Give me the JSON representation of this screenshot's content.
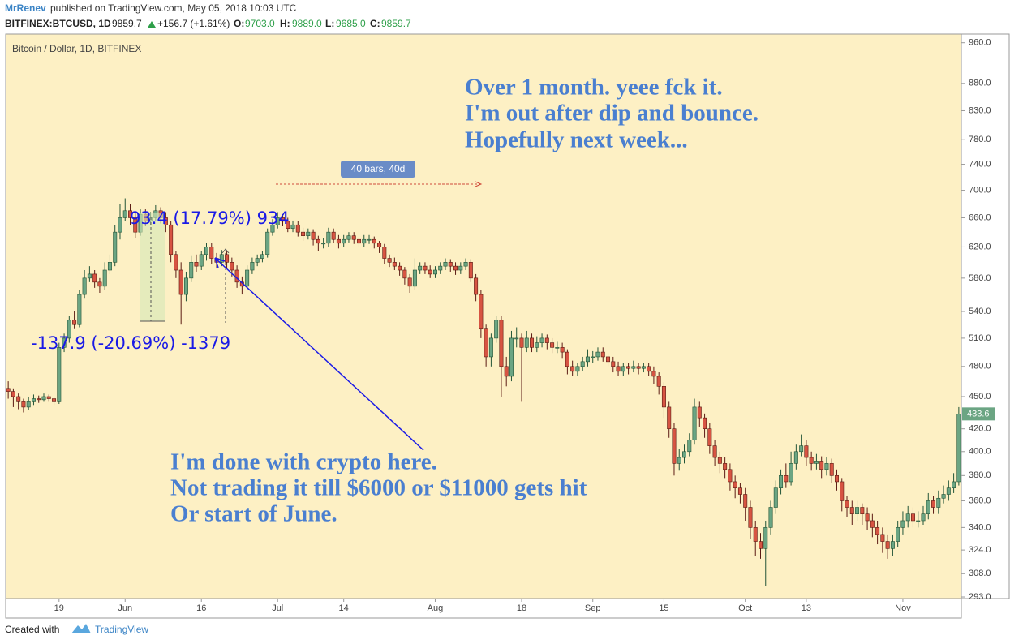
{
  "header": {
    "author": "MrRenev",
    "published": "published on TradingView.com, May 05, 2018 10:03 UTC",
    "symbol": "BITFINEX:BTCUSD, 1D",
    "last": "9859.7",
    "change": "+156.7 (+1.61%)",
    "o_label": "O:",
    "o": "9703.0",
    "h_label": "H:",
    "h": "9889.0",
    "l_label": "L:",
    "l": "9685.0",
    "c_label": "C:",
    "c": "9859.7"
  },
  "footer": {
    "created": "Created with",
    "brand": "TradingView"
  },
  "chart_data": {
    "type": "candlestick",
    "title": "Bitcoin / Dollar, 1D, BITFINEX",
    "log_scale": true,
    "up_color": "#6ba583",
    "down_color": "#d75442",
    "background": "#fdf0c4",
    "ylim": [
      292,
      978
    ],
    "yticks": [
      {
        "value": 960,
        "label": "960.0"
      },
      {
        "value": 880,
        "label": "880.0"
      },
      {
        "value": 830,
        "label": "830.0"
      },
      {
        "value": 780,
        "label": "780.0"
      },
      {
        "value": 740,
        "label": "740.0"
      },
      {
        "value": 700,
        "label": "700.0"
      },
      {
        "value": 660,
        "label": "660.0"
      },
      {
        "value": 620,
        "label": "620.0"
      },
      {
        "value": 580,
        "label": "580.0"
      },
      {
        "value": 540,
        "label": "540.0"
      },
      {
        "value": 510,
        "label": "510.0"
      },
      {
        "value": 480,
        "label": "480.0"
      },
      {
        "value": 450,
        "label": "450.0"
      },
      {
        "value": 420,
        "label": "420.0"
      },
      {
        "value": 400,
        "label": "400.0"
      },
      {
        "value": 380,
        "label": "380.0"
      },
      {
        "value": 360,
        "label": "360.0"
      },
      {
        "value": 340,
        "label": "340.0"
      },
      {
        "value": 324,
        "label": "324.0"
      },
      {
        "value": 308,
        "label": "308.0"
      },
      {
        "value": 293,
        "label": "293.0"
      }
    ],
    "xlim": [
      -0.5,
      187.5
    ],
    "xticks": [
      {
        "value": 10,
        "label": "19"
      },
      {
        "value": 23,
        "label": "Jun"
      },
      {
        "value": 38,
        "label": "16"
      },
      {
        "value": 53,
        "label": "Jul"
      },
      {
        "value": 66,
        "label": "14"
      },
      {
        "value": 84,
        "label": "Aug"
      },
      {
        "value": 101,
        "label": "18"
      },
      {
        "value": 115,
        "label": "Sep"
      },
      {
        "value": 129,
        "label": "15"
      },
      {
        "value": 145,
        "label": "Oct"
      },
      {
        "value": 157,
        "label": "13"
      },
      {
        "value": 176,
        "label": "Nov"
      }
    ],
    "annotations": {
      "top": [
        "Over 1 month. yeee fck it.",
        "I'm out after dip and bounce.",
        "Hopefully next week..."
      ],
      "bottom": [
        "I'm done with crypto here.",
        "Not trading it till $6000 or $11000 gets hit",
        "Or start of June."
      ],
      "measure_up": "93.4 (17.79%) 934",
      "measure_down": "-137.9 (-20.69%) -1379",
      "range": "40 bars, 40d"
    },
    "open": [
      458,
      455,
      450,
      445,
      440,
      445,
      448,
      447,
      450,
      448,
      445,
      500,
      510,
      530,
      525,
      560,
      580,
      585,
      575,
      570,
      590,
      600,
      640,
      660,
      670,
      660,
      640,
      665,
      655,
      660,
      670,
      660,
      650,
      610,
      590,
      560,
      580,
      600,
      595,
      610,
      620,
      605,
      600,
      610,
      600,
      590,
      575,
      570,
      590,
      600,
      605,
      610,
      640,
      650,
      660,
      655,
      645,
      650,
      640,
      635,
      640,
      630,
      625,
      625,
      640,
      630,
      625,
      630,
      635,
      630,
      625,
      630,
      630,
      625,
      620,
      605,
      600,
      595,
      590,
      580,
      570,
      590,
      595,
      590,
      585,
      590,
      595,
      600,
      595,
      590,
      595,
      600,
      580,
      560,
      520,
      490,
      510,
      530,
      480,
      470,
      510,
      510,
      500,
      510,
      500,
      505,
      510,
      505,
      500,
      500,
      495,
      480,
      475,
      480,
      485,
      490,
      490,
      495,
      490,
      485,
      480,
      475,
      480,
      478,
      480,
      478,
      480,
      475,
      470,
      460,
      440,
      420,
      390,
      395,
      400,
      410,
      440,
      430,
      420,
      405,
      395,
      390,
      385,
      375,
      370,
      365,
      355,
      340,
      330,
      325,
      340,
      355,
      370,
      380,
      375,
      390,
      400,
      405,
      395,
      390,
      392,
      385,
      390,
      380,
      375,
      360,
      355,
      350,
      355,
      350,
      345,
      340,
      335,
      330,
      325,
      330,
      340,
      345,
      350,
      345,
      345,
      350,
      360,
      355,
      362,
      365,
      370,
      375
    ],
    "high": [
      465,
      458,
      453,
      448,
      450,
      452,
      451,
      453,
      452,
      450,
      505,
      515,
      535,
      540,
      565,
      590,
      595,
      590,
      580,
      600,
      610,
      650,
      680,
      688,
      680,
      668,
      672,
      672,
      668,
      678,
      675,
      668,
      655,
      615,
      600,
      588,
      608,
      610,
      615,
      625,
      625,
      612,
      616,
      614,
      606,
      596,
      582,
      596,
      606,
      610,
      615,
      645,
      658,
      668,
      665,
      660,
      656,
      655,
      646,
      645,
      644,
      635,
      632,
      646,
      645,
      636,
      636,
      640,
      640,
      634,
      636,
      636,
      634,
      628,
      624,
      610,
      606,
      600,
      594,
      585,
      605,
      600,
      600,
      596,
      595,
      600,
      605,
      604,
      600,
      600,
      605,
      604,
      585,
      565,
      525,
      515,
      535,
      535,
      490,
      518,
      522,
      515,
      518,
      515,
      512,
      515,
      514,
      510,
      506,
      505,
      498,
      486,
      484,
      490,
      498,
      496,
      500,
      500,
      494,
      490,
      485,
      484,
      484,
      486,
      484,
      484,
      484,
      480,
      474,
      464,
      445,
      425,
      402,
      406,
      416,
      448,
      445,
      434,
      425,
      410,
      400,
      395,
      390,
      380,
      374,
      370,
      360,
      345,
      336,
      345,
      360,
      376,
      385,
      390,
      400,
      406,
      415,
      410,
      400,
      398,
      396,
      395,
      394,
      385,
      378,
      364,
      360,
      360,
      358,
      355,
      350,
      345,
      340,
      335,
      335,
      345,
      352,
      356,
      355,
      352,
      356,
      366,
      364,
      368,
      372,
      376,
      382,
      440
    ],
    "low": [
      448,
      440,
      438,
      435,
      437,
      442,
      444,
      445,
      445,
      442,
      443,
      495,
      505,
      520,
      522,
      555,
      575,
      568,
      562,
      565,
      585,
      595,
      630,
      655,
      650,
      632,
      635,
      648,
      650,
      655,
      652,
      640,
      600,
      580,
      525,
      552,
      575,
      588,
      590,
      602,
      598,
      592,
      595,
      592,
      582,
      568,
      560,
      565,
      585,
      595,
      600,
      606,
      635,
      645,
      648,
      640,
      640,
      634,
      628,
      630,
      622,
      615,
      618,
      620,
      625,
      618,
      620,
      626,
      624,
      620,
      620,
      624,
      618,
      612,
      598,
      594,
      590,
      583,
      572,
      562,
      565,
      585,
      585,
      580,
      580,
      585,
      590,
      588,
      584,
      585,
      590,
      575,
      552,
      510,
      480,
      480,
      505,
      450,
      460,
      465,
      500,
      445,
      495,
      495,
      495,
      500,
      498,
      494,
      494,
      488,
      472,
      470,
      470,
      475,
      480,
      484,
      486,
      485,
      480,
      474,
      470,
      470,
      472,
      474,
      472,
      474,
      470,
      462,
      452,
      430,
      412,
      380,
      384,
      390,
      396,
      406,
      422,
      412,
      398,
      388,
      382,
      378,
      368,
      362,
      358,
      345,
      332,
      320,
      318,
      300,
      335,
      350,
      365,
      370,
      372,
      385,
      396,
      388,
      384,
      385,
      378,
      380,
      374,
      368,
      352,
      348,
      342,
      345,
      342,
      338,
      333,
      328,
      322,
      318,
      320,
      326,
      335,
      340,
      340,
      340,
      342,
      346,
      350,
      350,
      358,
      360,
      366,
      372
    ],
    "close": [
      455,
      450,
      445,
      440,
      445,
      448,
      447,
      450,
      448,
      445,
      500,
      510,
      530,
      525,
      560,
      580,
      585,
      575,
      570,
      590,
      600,
      640,
      660,
      670,
      660,
      640,
      665,
      655,
      660,
      670,
      660,
      650,
      610,
      590,
      560,
      580,
      600,
      595,
      610,
      620,
      605,
      600,
      610,
      600,
      590,
      575,
      570,
      590,
      600,
      605,
      610,
      640,
      650,
      660,
      655,
      645,
      650,
      640,
      635,
      640,
      630,
      625,
      625,
      640,
      630,
      625,
      630,
      635,
      630,
      625,
      630,
      630,
      625,
      620,
      605,
      600,
      595,
      590,
      580,
      570,
      590,
      595,
      590,
      585,
      590,
      595,
      600,
      595,
      590,
      595,
      600,
      580,
      560,
      520,
      490,
      510,
      530,
      480,
      470,
      510,
      510,
      500,
      510,
      500,
      505,
      510,
      505,
      500,
      500,
      495,
      480,
      475,
      480,
      485,
      490,
      490,
      495,
      490,
      485,
      480,
      475,
      480,
      478,
      480,
      478,
      480,
      475,
      470,
      460,
      440,
      420,
      390,
      395,
      400,
      410,
      440,
      430,
      420,
      405,
      395,
      390,
      385,
      375,
      370,
      365,
      355,
      340,
      330,
      325,
      340,
      355,
      370,
      380,
      375,
      390,
      400,
      405,
      395,
      390,
      392,
      385,
      390,
      380,
      375,
      360,
      355,
      350,
      355,
      350,
      345,
      340,
      335,
      330,
      325,
      330,
      340,
      345,
      350,
      345,
      345,
      350,
      360,
      355,
      362,
      365,
      370,
      375,
      433.6
    ]
  }
}
